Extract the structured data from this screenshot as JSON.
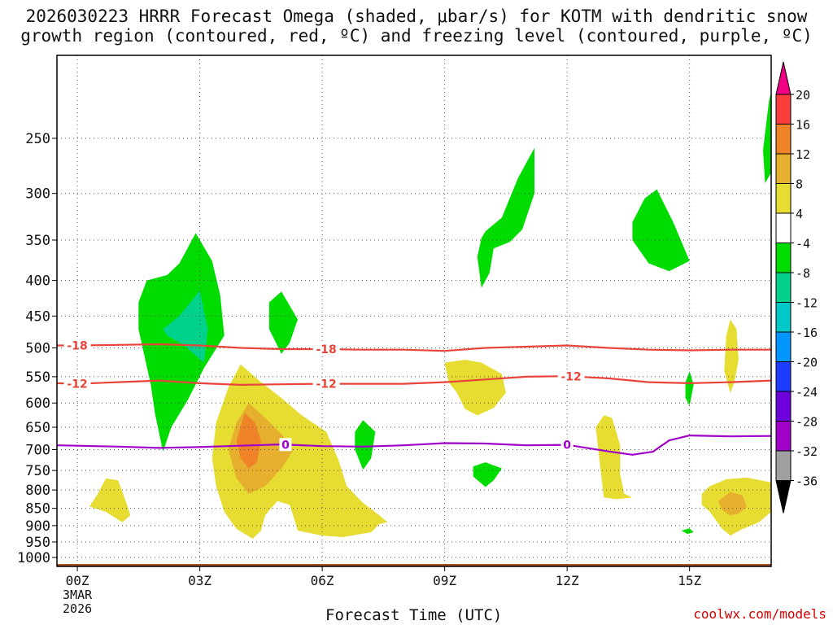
{
  "chart_data": {
    "type": "heatmap",
    "title_line1": "2026030223 HRRR Forecast Omega (shaded, μbar/s) for KOTM with dendritic snow",
    "title_line2": "growth region (contoured, red, ºC) and freezing level (contoured, purple, ºC)",
    "xlabel": "Forecast Time (UTC)",
    "ylabel": "",
    "credit": "coolwx.com/models",
    "x_range_hours": [
      -0.5,
      17.0
    ],
    "y_range_mb": [
      1030,
      190
    ],
    "y_ticks": [
      250,
      300,
      350,
      400,
      450,
      500,
      550,
      600,
      650,
      700,
      750,
      800,
      850,
      900,
      950,
      1000
    ],
    "x_ticks": [
      {
        "hour": 0,
        "label": "00Z",
        "sub1": "3MAR",
        "sub2": "2026"
      },
      {
        "hour": 3,
        "label": "03Z"
      },
      {
        "hour": 6,
        "label": "06Z"
      },
      {
        "hour": 9,
        "label": "09Z"
      },
      {
        "hour": 12,
        "label": "12Z"
      },
      {
        "hour": 15,
        "label": "15Z"
      }
    ],
    "colorbar": [
      {
        "min": -40,
        "max": -36,
        "color": "#000000"
      },
      {
        "min": -36,
        "max": -32,
        "color": "#a0a0a0"
      },
      {
        "min": -32,
        "max": -28,
        "color": "#a000c8"
      },
      {
        "min": -28,
        "max": -24,
        "color": "#6e00dc"
      },
      {
        "min": -24,
        "max": -20,
        "color": "#1e3cff"
      },
      {
        "min": -20,
        "max": -16,
        "color": "#0096ff"
      },
      {
        "min": -16,
        "max": -12,
        "color": "#00c8c8"
      },
      {
        "min": -12,
        "max": -8,
        "color": "#00d28c"
      },
      {
        "min": -8,
        "max": -4,
        "color": "#00dc00"
      },
      {
        "min": -4,
        "max": 4,
        "color": "#ffffff"
      },
      {
        "min": 4,
        "max": 8,
        "color": "#e6dc32"
      },
      {
        "min": 8,
        "max": 12,
        "color": "#e6af2d"
      },
      {
        "min": 12,
        "max": 16,
        "color": "#f08228"
      },
      {
        "min": 16,
        "max": 20,
        "color": "#fa3c3c"
      },
      {
        "min": 20,
        "max": 24,
        "color": "#f00082"
      }
    ],
    "colorbar_labels": [
      "20",
      "16",
      "12",
      "8",
      "4",
      "-4",
      "-8",
      "-12",
      "-16",
      "-20",
      "-24",
      "-28",
      "-32",
      "-36"
    ],
    "contours": [
      {
        "name": "dgz-minus18",
        "label": "-18",
        "color": "#e8443a",
        "label_hours": [
          0.0,
          6.1
        ],
        "points": [
          [
            -0.5,
            496
          ],
          [
            0,
            496
          ],
          [
            1,
            495
          ],
          [
            2,
            494
          ],
          [
            3,
            496
          ],
          [
            4,
            500
          ],
          [
            5,
            502
          ],
          [
            6,
            502
          ],
          [
            7,
            503
          ],
          [
            8,
            503
          ],
          [
            9,
            505
          ],
          [
            10,
            500
          ],
          [
            11,
            498
          ],
          [
            12,
            496
          ],
          [
            13,
            500
          ],
          [
            14,
            503
          ],
          [
            15,
            504
          ],
          [
            16,
            503
          ],
          [
            17,
            503
          ]
        ]
      },
      {
        "name": "dgz-minus12",
        "label": "-12",
        "color": "#e8443a",
        "label_hours": [
          0.0,
          6.1,
          12.1
        ],
        "points": [
          [
            -0.5,
            562
          ],
          [
            0,
            563
          ],
          [
            1,
            560
          ],
          [
            2,
            557
          ],
          [
            3,
            562
          ],
          [
            4,
            565
          ],
          [
            5,
            564
          ],
          [
            6,
            563
          ],
          [
            7,
            563
          ],
          [
            8,
            563
          ],
          [
            9,
            560
          ],
          [
            10,
            555
          ],
          [
            11,
            550
          ],
          [
            12,
            549
          ],
          [
            13,
            553
          ],
          [
            14,
            560
          ],
          [
            15,
            562
          ],
          [
            16,
            560
          ],
          [
            17,
            557
          ]
        ]
      },
      {
        "name": "freezing-level",
        "label": "0",
        "color": "#a000c8",
        "label_hours": [
          5.1,
          12.0
        ],
        "points": [
          [
            -0.5,
            690
          ],
          [
            0,
            691
          ],
          [
            1,
            693
          ],
          [
            2,
            696
          ],
          [
            3,
            694
          ],
          [
            4,
            691
          ],
          [
            5,
            688
          ],
          [
            6,
            692
          ],
          [
            7,
            693
          ],
          [
            8,
            690
          ],
          [
            9,
            685
          ],
          [
            10,
            686
          ],
          [
            11,
            690
          ],
          [
            12,
            689
          ],
          [
            13,
            704
          ],
          [
            13.6,
            712
          ],
          [
            14.1,
            705
          ],
          [
            14.5,
            679
          ],
          [
            15,
            668
          ],
          [
            16,
            670
          ],
          [
            17,
            669
          ]
        ]
      }
    ],
    "shaded_regions": [
      {
        "name": "upslope-green-02z",
        "color": "#00dc00",
        "value_range": [
          -8,
          -4
        ],
        "points": [
          [
            1.5,
            430
          ],
          [
            1.7,
            400
          ],
          [
            2.2,
            393
          ],
          [
            2.5,
            378
          ],
          [
            2.9,
            342
          ],
          [
            3.3,
            375
          ],
          [
            3.5,
            420
          ],
          [
            3.6,
            480
          ],
          [
            3.1,
            535
          ],
          [
            2.7,
            595
          ],
          [
            2.3,
            650
          ],
          [
            2.1,
            705
          ],
          [
            1.9,
            620
          ],
          [
            1.8,
            565
          ],
          [
            1.5,
            470
          ]
        ]
      },
      {
        "name": "upslope-teal-02z",
        "color": "#00d28c",
        "value_range": [
          -12,
          -8
        ],
        "points": [
          [
            2.1,
            470
          ],
          [
            2.5,
            450
          ],
          [
            3.0,
            414
          ],
          [
            3.2,
            470
          ],
          [
            3.1,
            525
          ],
          [
            2.6,
            495
          ],
          [
            2.2,
            480
          ]
        ]
      },
      {
        "name": "green-05z",
        "color": "#00dc00",
        "value_range": [
          -8,
          -4
        ],
        "points": [
          [
            4.7,
            430
          ],
          [
            5.0,
            415
          ],
          [
            5.4,
            455
          ],
          [
            5.2,
            492
          ],
          [
            5.0,
            510
          ],
          [
            4.7,
            470
          ]
        ]
      },
      {
        "name": "green-07z",
        "color": "#00dc00",
        "value_range": [
          -8,
          -4
        ],
        "points": [
          [
            6.8,
            660
          ],
          [
            7.0,
            635
          ],
          [
            7.3,
            660
          ],
          [
            7.2,
            720
          ],
          [
            7.0,
            748
          ],
          [
            6.8,
            700
          ]
        ]
      },
      {
        "name": "green-10z-upper",
        "color": "#00dc00",
        "value_range": [
          -8,
          -4
        ],
        "points": [
          [
            10.0,
            340
          ],
          [
            10.4,
            325
          ],
          [
            10.8,
            285
          ],
          [
            11.2,
            258
          ],
          [
            11.2,
            300
          ],
          [
            10.9,
            338
          ],
          [
            10.6,
            352
          ],
          [
            10.2,
            360
          ],
          [
            10.1,
            390
          ],
          [
            9.9,
            410
          ],
          [
            9.8,
            370
          ],
          [
            9.9,
            348
          ]
        ]
      },
      {
        "name": "green-10z-lower",
        "color": "#00dc00",
        "value_range": [
          -8,
          -4
        ],
        "points": [
          [
            9.7,
            740
          ],
          [
            10.0,
            730
          ],
          [
            10.4,
            745
          ],
          [
            10.2,
            775
          ],
          [
            10.0,
            792
          ],
          [
            9.7,
            765
          ]
        ]
      },
      {
        "name": "green-14z",
        "color": "#00dc00",
        "value_range": [
          -8,
          -4
        ],
        "points": [
          [
            13.6,
            330
          ],
          [
            13.9,
            305
          ],
          [
            14.2,
            296
          ],
          [
            14.6,
            330
          ],
          [
            15.0,
            375
          ],
          [
            14.5,
            388
          ],
          [
            14.0,
            378
          ],
          [
            13.6,
            350
          ]
        ]
      },
      {
        "name": "green-15z-small",
        "color": "#00dc00",
        "value_range": [
          -8,
          -4
        ],
        "points": [
          [
            14.9,
            560
          ],
          [
            15.0,
            540
          ],
          [
            15.1,
            565
          ],
          [
            15.0,
            605
          ],
          [
            14.9,
            590
          ]
        ]
      },
      {
        "name": "green-15z-low",
        "color": "#00dc00",
        "value_range": [
          -8,
          -4
        ],
        "points": [
          [
            14.8,
            915
          ],
          [
            15.0,
            908
          ],
          [
            15.1,
            920
          ],
          [
            14.95,
            925
          ]
        ]
      },
      {
        "name": "green-17z-top",
        "color": "#00dc00",
        "value_range": [
          -8,
          -4
        ],
        "points": [
          [
            16.8,
            260
          ],
          [
            16.95,
            220
          ],
          [
            17.0,
            215
          ],
          [
            17.0,
            280
          ],
          [
            16.85,
            290
          ]
        ]
      },
      {
        "name": "yellow-01z",
        "color": "#e6dc32",
        "value_range": [
          4,
          8
        ],
        "points": [
          [
            0.3,
            845
          ],
          [
            0.5,
            810
          ],
          [
            0.7,
            770
          ],
          [
            1.0,
            775
          ],
          [
            1.2,
            835
          ],
          [
            1.3,
            870
          ],
          [
            1.1,
            890
          ],
          [
            0.7,
            860
          ]
        ]
      },
      {
        "name": "yellow-04z-main",
        "color": "#e6dc32",
        "value_range": [
          4,
          8
        ],
        "points": [
          [
            3.4,
            640
          ],
          [
            3.7,
            570
          ],
          [
            4.0,
            528
          ],
          [
            4.5,
            560
          ],
          [
            5.0,
            590
          ],
          [
            5.5,
            625
          ],
          [
            6.1,
            660
          ],
          [
            6.4,
            725
          ],
          [
            6.6,
            790
          ],
          [
            7.0,
            835
          ],
          [
            7.4,
            870
          ],
          [
            7.6,
            890
          ],
          [
            7.4,
            895
          ],
          [
            7.2,
            920
          ],
          [
            6.5,
            935
          ],
          [
            6.0,
            930
          ],
          [
            5.4,
            915
          ],
          [
            5.3,
            875
          ],
          [
            5.2,
            840
          ],
          [
            4.9,
            830
          ],
          [
            4.6,
            870
          ],
          [
            4.5,
            915
          ],
          [
            4.3,
            940
          ],
          [
            3.9,
            910
          ],
          [
            3.6,
            860
          ],
          [
            3.4,
            790
          ],
          [
            3.3,
            720
          ]
        ]
      },
      {
        "name": "orange-04z",
        "color": "#e6af2d",
        "value_range": [
          8,
          12
        ],
        "points": [
          [
            3.7,
            700
          ],
          [
            3.9,
            640
          ],
          [
            4.2,
            600
          ],
          [
            4.6,
            630
          ],
          [
            5.0,
            665
          ],
          [
            5.3,
            700
          ],
          [
            5.0,
            745
          ],
          [
            4.6,
            790
          ],
          [
            4.2,
            810
          ],
          [
            3.9,
            770
          ]
        ]
      },
      {
        "name": "deep-orange-04z",
        "color": "#f08228",
        "value_range": [
          12,
          16
        ],
        "points": [
          [
            3.9,
            680
          ],
          [
            4.1,
            620
          ],
          [
            4.35,
            640
          ],
          [
            4.5,
            680
          ],
          [
            4.4,
            730
          ],
          [
            4.2,
            745
          ],
          [
            4.0,
            720
          ]
        ]
      },
      {
        "name": "yellow-09z",
        "color": "#e6dc32",
        "value_range": [
          4,
          8
        ],
        "points": [
          [
            9.0,
            525
          ],
          [
            9.5,
            520
          ],
          [
            9.9,
            525
          ],
          [
            10.4,
            545
          ],
          [
            10.5,
            580
          ],
          [
            10.2,
            610
          ],
          [
            9.8,
            625
          ],
          [
            9.5,
            612
          ],
          [
            9.3,
            580
          ],
          [
            9.1,
            560
          ]
        ]
      },
      {
        "name": "yellow-13z",
        "color": "#e6dc32",
        "value_range": [
          4,
          8
        ],
        "points": [
          [
            12.7,
            650
          ],
          [
            12.9,
            625
          ],
          [
            13.1,
            630
          ],
          [
            13.3,
            690
          ],
          [
            13.3,
            760
          ],
          [
            13.4,
            810
          ],
          [
            13.6,
            820
          ],
          [
            13.2,
            825
          ],
          [
            12.9,
            820
          ],
          [
            12.8,
            730
          ]
        ]
      },
      {
        "name": "yellow-16z-upper",
        "color": "#e6dc32",
        "value_range": [
          4,
          8
        ],
        "points": [
          [
            15.9,
            480
          ],
          [
            16.0,
            455
          ],
          [
            16.15,
            470
          ],
          [
            16.2,
            520
          ],
          [
            16.1,
            560
          ],
          [
            16.0,
            580
          ],
          [
            15.85,
            540
          ]
        ]
      },
      {
        "name": "yellow-16z-lower",
        "color": "#e6dc32",
        "value_range": [
          4,
          8
        ],
        "points": [
          [
            15.3,
            810
          ],
          [
            15.5,
            790
          ],
          [
            15.9,
            772
          ],
          [
            16.4,
            768
          ],
          [
            17.0,
            780
          ],
          [
            17.0,
            860
          ],
          [
            16.7,
            890
          ],
          [
            16.3,
            910
          ],
          [
            16.0,
            930
          ],
          [
            15.8,
            910
          ],
          [
            15.5,
            860
          ],
          [
            15.3,
            840
          ]
        ]
      },
      {
        "name": "orange-16z",
        "color": "#e6af2d",
        "value_range": [
          8,
          12
        ],
        "points": [
          [
            15.7,
            830
          ],
          [
            16.0,
            805
          ],
          [
            16.3,
            815
          ],
          [
            16.4,
            845
          ],
          [
            16.2,
            865
          ],
          [
            16.0,
            870
          ],
          [
            15.8,
            855
          ]
        ]
      }
    ],
    "terrain_fill_color": "#a0522d"
  }
}
